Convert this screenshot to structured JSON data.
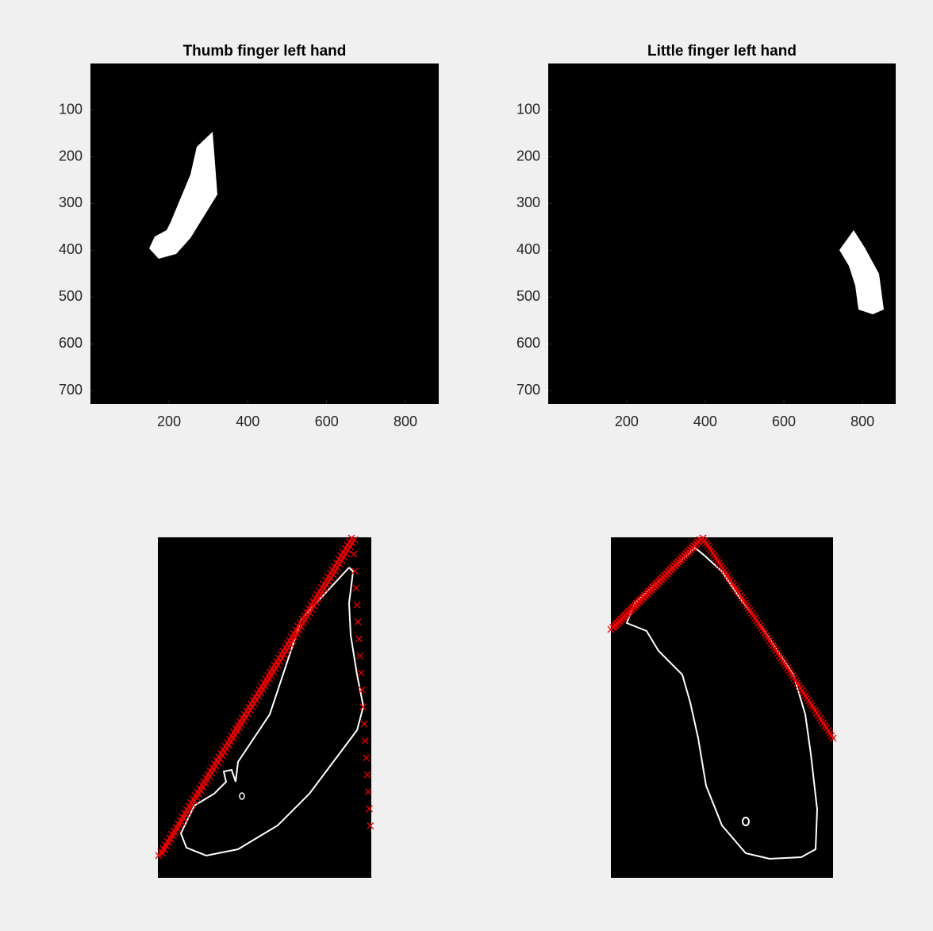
{
  "chart_data": [
    {
      "type": "image",
      "title": "Thumb finger left hand",
      "xlim": [
        0.5,
        884.5
      ],
      "ylim": [
        0.5,
        728.5
      ],
      "y_reversed": true,
      "xticks": [
        200,
        400,
        600,
        800
      ],
      "yticks": [
        100,
        200,
        300,
        400,
        500,
        600,
        700
      ]
    },
    {
      "type": "image",
      "title": "Little finger left hand",
      "xlim": [
        0.5,
        884.5
      ],
      "ylim": [
        0.5,
        728.5
      ],
      "y_reversed": true,
      "xticks": [
        200,
        400,
        600,
        800
      ],
      "yticks": [
        100,
        200,
        300,
        400,
        500,
        600,
        700
      ]
    },
    {
      "type": "image"
    },
    {
      "type": "image"
    }
  ]
}
